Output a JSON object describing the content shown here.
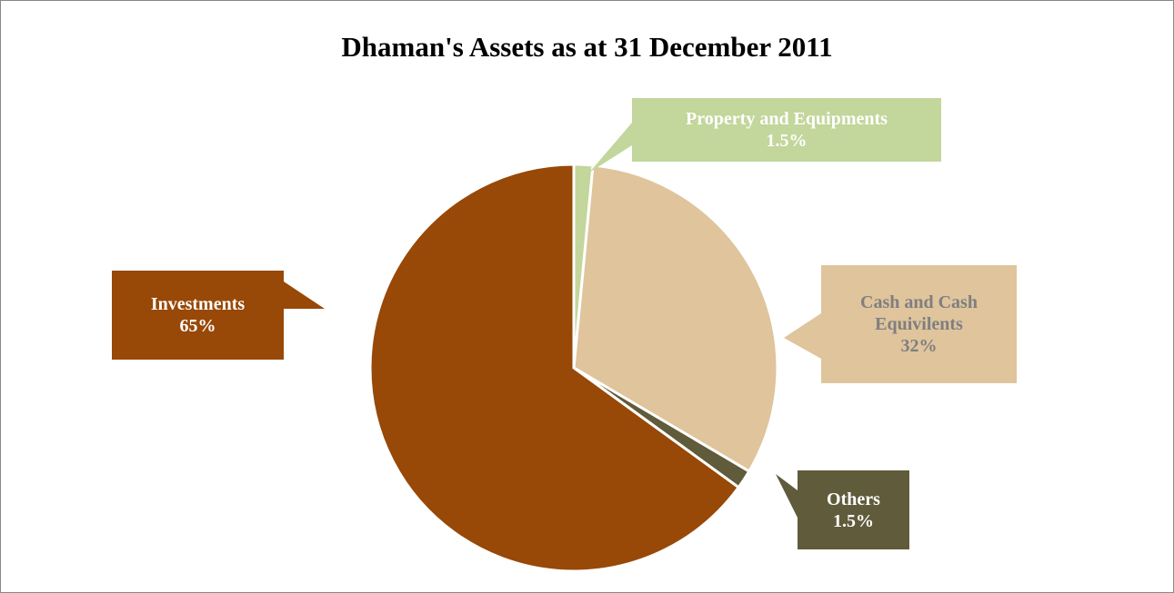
{
  "chart_data": {
    "type": "pie",
    "title": "Dhaman's Assets as at 31 December 2011",
    "categories": [
      "Property and Equipments",
      "Cash and Cash Equivilents",
      "Others",
      "Investments"
    ],
    "values": [
      1.5,
      32,
      1.5,
      65
    ],
    "value_labels": [
      "1.5%",
      "32%",
      "1.5%",
      "65%"
    ],
    "colors": [
      "#c3d69b",
      "#dfc49c",
      "#5f5b3b",
      "#984807"
    ]
  }
}
